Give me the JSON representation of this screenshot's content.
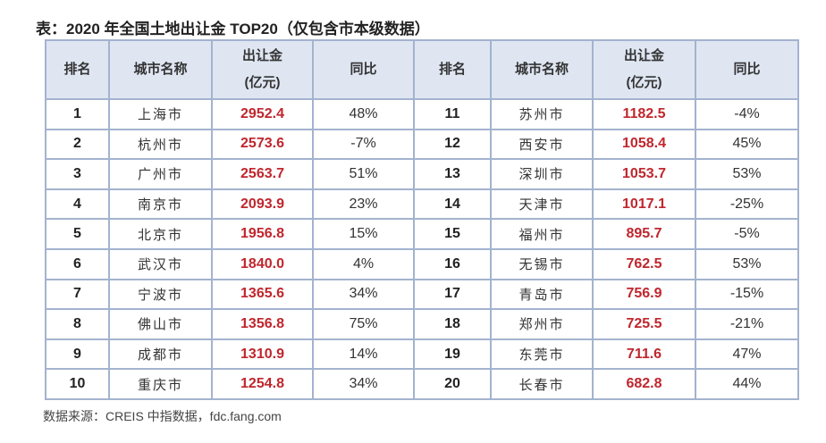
{
  "title": "表：2020 年全国土地出让金 TOP20（仅包含市本级数据）",
  "headers": {
    "rank": "排名",
    "city": "城市名称",
    "amount_line1": "出让金",
    "amount_line2": "(亿元)",
    "yoy": "同比"
  },
  "colors": {
    "amount": "#c0262d",
    "header_bg": "#dfe6f2",
    "border": "#a3b3cf"
  },
  "rows": [
    {
      "rank": "1",
      "city": "上海市",
      "amount": "2952.4",
      "yoy": "48%"
    },
    {
      "rank": "2",
      "city": "杭州市",
      "amount": "2573.6",
      "yoy": "-7%"
    },
    {
      "rank": "3",
      "city": "广州市",
      "amount": "2563.7",
      "yoy": "51%"
    },
    {
      "rank": "4",
      "city": "南京市",
      "amount": "2093.9",
      "yoy": "23%"
    },
    {
      "rank": "5",
      "city": "北京市",
      "amount": "1956.8",
      "yoy": "15%"
    },
    {
      "rank": "6",
      "city": "武汉市",
      "amount": "1840.0",
      "yoy": "4%"
    },
    {
      "rank": "7",
      "city": "宁波市",
      "amount": "1365.6",
      "yoy": "34%"
    },
    {
      "rank": "8",
      "city": "佛山市",
      "amount": "1356.8",
      "yoy": "75%"
    },
    {
      "rank": "9",
      "city": "成都市",
      "amount": "1310.9",
      "yoy": "14%"
    },
    {
      "rank": "10",
      "city": "重庆市",
      "amount": "1254.8",
      "yoy": "34%"
    },
    {
      "rank": "11",
      "city": "苏州市",
      "amount": "1182.5",
      "yoy": "-4%"
    },
    {
      "rank": "12",
      "city": "西安市",
      "amount": "1058.4",
      "yoy": "45%"
    },
    {
      "rank": "13",
      "city": "深圳市",
      "amount": "1053.7",
      "yoy": "53%"
    },
    {
      "rank": "14",
      "city": "天津市",
      "amount": "1017.1",
      "yoy": "-25%"
    },
    {
      "rank": "15",
      "city": "福州市",
      "amount": "895.7",
      "yoy": "-5%"
    },
    {
      "rank": "16",
      "city": "无锡市",
      "amount": "762.5",
      "yoy": "53%"
    },
    {
      "rank": "17",
      "city": "青岛市",
      "amount": "756.9",
      "yoy": "-15%"
    },
    {
      "rank": "18",
      "city": "郑州市",
      "amount": "725.5",
      "yoy": "-21%"
    },
    {
      "rank": "19",
      "city": "东莞市",
      "amount": "711.6",
      "yoy": "47%"
    },
    {
      "rank": "20",
      "city": "长春市",
      "amount": "682.8",
      "yoy": "44%"
    }
  ],
  "source": "数据来源：CREIS 中指数据，fdc.fang.com"
}
